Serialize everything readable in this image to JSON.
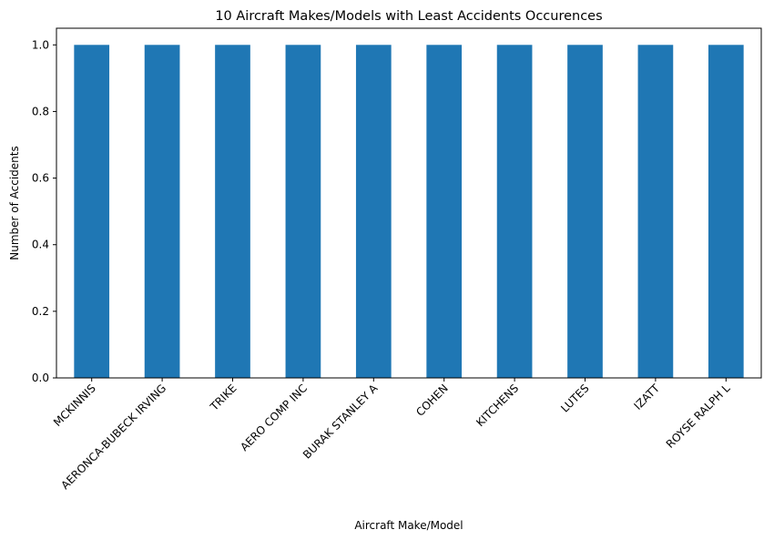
{
  "chart_data": {
    "type": "bar",
    "title": "10 Aircraft Makes/Models with Least Accidents Occurences",
    "xlabel": "Aircraft Make/Model",
    "ylabel": "Number of Accidents",
    "categories": [
      "MCKINNIS",
      "AERONCA-BUBECK IRVING",
      "TRIKE",
      "AERO COMP INC",
      "BURAK STANLEY A",
      "COHEN",
      "KITCHENS",
      "LUTES",
      "IZATT",
      "ROYSE RALPH L"
    ],
    "values": [
      1,
      1,
      1,
      1,
      1,
      1,
      1,
      1,
      1,
      1
    ],
    "ylim": [
      0,
      1.05
    ],
    "yticks": [
      "0.0",
      "0.2",
      "0.4",
      "0.6",
      "0.8",
      "1.0"
    ],
    "bar_color": "#1f77b4",
    "grid": false,
    "tick_rotation_deg": 45
  }
}
